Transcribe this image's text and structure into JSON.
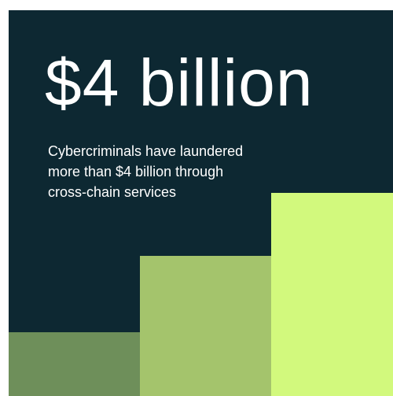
{
  "headline": "$4 billion",
  "body_lines": [
    "Cybercriminals have laundered",
    "more than $4 billion through",
    "cross-chain services"
  ],
  "colors": {
    "background": "#0d2832",
    "text": "#ffffff",
    "bar_1": "#6e8f5a",
    "bar_2": "#a4c46c",
    "bar_3": "#d2f97d"
  }
}
